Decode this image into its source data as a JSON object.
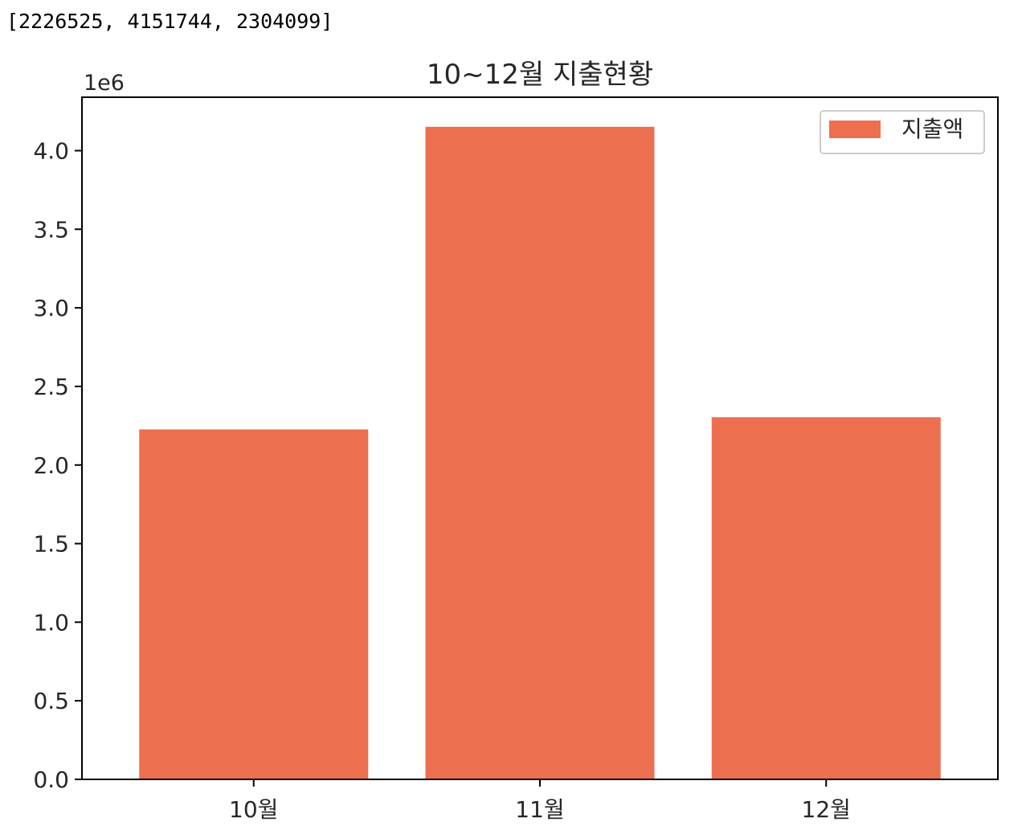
{
  "console_output": "[2226525, 4151744, 2304099]",
  "chart_data": {
    "type": "bar",
    "title": "10~12월 지출현황",
    "categories": [
      "10월",
      "11월",
      "12월"
    ],
    "series": [
      {
        "name": "지출액",
        "values": [
          2226525,
          4151744,
          2304099
        ],
        "color": "#ec6f50"
      }
    ],
    "xlabel": "",
    "ylabel": "",
    "ylim": [
      0,
      4340000
    ],
    "y_ticks": [
      0,
      500000,
      1000000,
      1500000,
      2000000,
      2500000,
      3000000,
      3500000,
      4000000
    ],
    "y_tick_labels": [
      "0.0",
      "0.5",
      "1.0",
      "1.5",
      "2.0",
      "2.5",
      "3.0",
      "3.5",
      "4.0"
    ],
    "y_offset_label": "1e6",
    "grid": false,
    "legend_position": "top-right"
  }
}
